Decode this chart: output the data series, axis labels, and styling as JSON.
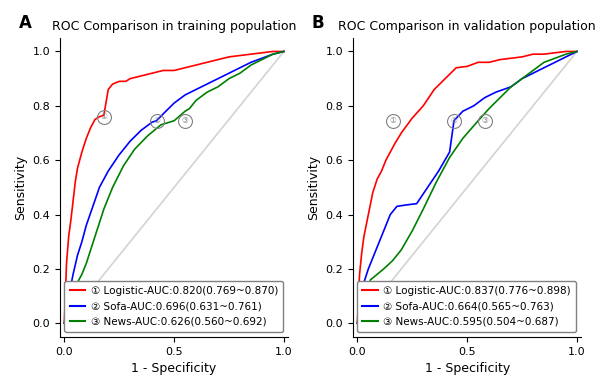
{
  "panel_A": {
    "title": "ROC Comparison in training population",
    "label": "A",
    "legend": [
      "① Logistic-AUC:0.820(0.769~0.870)",
      "② Sofa-AUC:0.696(0.631~0.761)",
      "③ News-AUC:0.626(0.560~0.692)"
    ],
    "colors": [
      "red",
      "blue",
      "green"
    ],
    "marker_points": [
      [
        0.18,
        0.76
      ],
      [
        0.42,
        0.745
      ],
      [
        0.55,
        0.745
      ]
    ],
    "marker_labels": [
      "①",
      "②",
      "③"
    ],
    "curves": {
      "logistic": {
        "fpr": [
          0.0,
          0.01,
          0.02,
          0.03,
          0.04,
          0.05,
          0.06,
          0.07,
          0.08,
          0.1,
          0.12,
          0.14,
          0.16,
          0.18,
          0.2,
          0.22,
          0.25,
          0.28,
          0.3,
          0.35,
          0.4,
          0.45,
          0.5,
          0.55,
          0.6,
          0.65,
          0.7,
          0.75,
          0.8,
          0.85,
          0.9,
          0.95,
          1.0
        ],
        "tpr": [
          0.0,
          0.22,
          0.32,
          0.38,
          0.45,
          0.52,
          0.57,
          0.6,
          0.63,
          0.68,
          0.72,
          0.75,
          0.76,
          0.765,
          0.86,
          0.88,
          0.89,
          0.89,
          0.9,
          0.91,
          0.92,
          0.93,
          0.93,
          0.94,
          0.95,
          0.96,
          0.97,
          0.98,
          0.985,
          0.99,
          0.995,
          1.0,
          1.0
        ]
      },
      "sofa": {
        "fpr": [
          0.0,
          0.01,
          0.02,
          0.04,
          0.06,
          0.08,
          0.1,
          0.13,
          0.16,
          0.2,
          0.25,
          0.3,
          0.35,
          0.4,
          0.42,
          0.45,
          0.5,
          0.55,
          0.6,
          0.65,
          0.7,
          0.75,
          0.8,
          0.85,
          0.9,
          0.95,
          1.0
        ],
        "tpr": [
          0.0,
          0.05,
          0.1,
          0.18,
          0.25,
          0.3,
          0.36,
          0.43,
          0.5,
          0.56,
          0.62,
          0.67,
          0.71,
          0.74,
          0.745,
          0.77,
          0.81,
          0.84,
          0.86,
          0.88,
          0.9,
          0.92,
          0.94,
          0.96,
          0.975,
          0.99,
          1.0
        ]
      },
      "news": {
        "fpr": [
          0.0,
          0.01,
          0.02,
          0.04,
          0.06,
          0.08,
          0.1,
          0.14,
          0.18,
          0.22,
          0.27,
          0.32,
          0.38,
          0.44,
          0.5,
          0.55,
          0.57,
          0.6,
          0.65,
          0.7,
          0.75,
          0.8,
          0.85,
          0.9,
          0.95,
          1.0
        ],
        "tpr": [
          0.0,
          0.02,
          0.05,
          0.1,
          0.15,
          0.18,
          0.22,
          0.32,
          0.42,
          0.5,
          0.58,
          0.64,
          0.69,
          0.73,
          0.745,
          0.78,
          0.79,
          0.82,
          0.85,
          0.87,
          0.9,
          0.92,
          0.95,
          0.97,
          0.99,
          1.0
        ]
      }
    }
  },
  "panel_B": {
    "title": "ROC Comparison in validation population",
    "label": "B",
    "legend": [
      "① Logistic-AUC:0.837(0.776~0.898)",
      "② Sofa-AUC:0.664(0.565~0.763)",
      "③ News-AUC:0.595(0.504~0.687)"
    ],
    "colors": [
      "red",
      "blue",
      "green"
    ],
    "marker_points": [
      [
        0.16,
        0.745
      ],
      [
        0.44,
        0.745
      ],
      [
        0.58,
        0.745
      ]
    ],
    "marker_labels": [
      "①",
      "②",
      "③"
    ],
    "curves": {
      "logistic": {
        "fpr": [
          0.0,
          0.01,
          0.02,
          0.03,
          0.05,
          0.07,
          0.09,
          0.11,
          0.13,
          0.15,
          0.17,
          0.2,
          0.25,
          0.3,
          0.35,
          0.4,
          0.45,
          0.5,
          0.55,
          0.6,
          0.65,
          0.7,
          0.75,
          0.8,
          0.85,
          0.9,
          0.95,
          1.0
        ],
        "tpr": [
          0.0,
          0.18,
          0.26,
          0.32,
          0.4,
          0.48,
          0.53,
          0.56,
          0.6,
          0.63,
          0.66,
          0.7,
          0.755,
          0.8,
          0.86,
          0.9,
          0.94,
          0.945,
          0.96,
          0.96,
          0.97,
          0.975,
          0.98,
          0.99,
          0.99,
          0.995,
          1.0,
          1.0
        ]
      },
      "sofa": {
        "fpr": [
          0.0,
          0.01,
          0.02,
          0.03,
          0.05,
          0.07,
          0.09,
          0.12,
          0.15,
          0.18,
          0.22,
          0.27,
          0.32,
          0.37,
          0.42,
          0.44,
          0.48,
          0.53,
          0.58,
          0.63,
          0.7,
          0.75,
          0.8,
          0.85,
          0.9,
          0.95,
          1.0
        ],
        "tpr": [
          0.0,
          0.05,
          0.1,
          0.15,
          0.2,
          0.24,
          0.28,
          0.34,
          0.4,
          0.43,
          0.435,
          0.44,
          0.5,
          0.56,
          0.63,
          0.745,
          0.78,
          0.8,
          0.83,
          0.85,
          0.87,
          0.9,
          0.92,
          0.94,
          0.96,
          0.98,
          1.0
        ]
      },
      "news": {
        "fpr": [
          0.0,
          0.01,
          0.02,
          0.04,
          0.06,
          0.09,
          0.12,
          0.16,
          0.2,
          0.25,
          0.3,
          0.36,
          0.42,
          0.48,
          0.55,
          0.6,
          0.65,
          0.7,
          0.75,
          0.8,
          0.85,
          0.9,
          0.95,
          1.0
        ],
        "tpr": [
          0.0,
          0.02,
          0.06,
          0.12,
          0.16,
          0.18,
          0.2,
          0.23,
          0.27,
          0.34,
          0.42,
          0.52,
          0.61,
          0.68,
          0.745,
          0.79,
          0.83,
          0.87,
          0.9,
          0.93,
          0.96,
          0.975,
          0.99,
          1.0
        ]
      }
    }
  },
  "xlabel": "1 - Specificity",
  "ylabel": "Sensitivity",
  "yticks": [
    0.0,
    0.2,
    0.4,
    0.6,
    0.8,
    1.0
  ],
  "xticks": [
    0.0,
    0.5,
    1.0
  ],
  "background_color": "#ffffff",
  "legend_fontsize": 7.5,
  "axis_fontsize": 9,
  "title_fontsize": 9,
  "label_fontsize": 12
}
